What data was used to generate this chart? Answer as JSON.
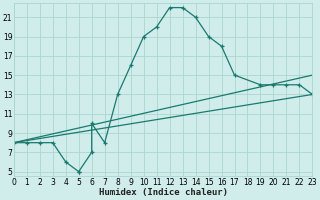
{
  "xlabel": "Humidex (Indice chaleur)",
  "bg_color": "#d0eceb",
  "grid_color": "#aad6d2",
  "line_color": "#1a7a6e",
  "xlim": [
    0,
    23
  ],
  "ylim": [
    4.5,
    22.5
  ],
  "xtick_labels": [
    "0",
    "1",
    "2",
    "3",
    "4",
    "5",
    "6",
    "7",
    "8",
    "9",
    "10",
    "11",
    "12",
    "13",
    "14",
    "15",
    "16",
    "17",
    "18",
    "19",
    "20",
    "21",
    "22",
    "23"
  ],
  "xticks": [
    0,
    1,
    2,
    3,
    4,
    5,
    6,
    7,
    8,
    9,
    10,
    11,
    12,
    13,
    14,
    15,
    16,
    17,
    18,
    19,
    20,
    21,
    22,
    23
  ],
  "yticks": [
    5,
    7,
    9,
    11,
    13,
    15,
    17,
    19,
    21
  ],
  "curve_x": [
    0,
    1,
    2,
    3,
    4,
    5,
    5,
    6,
    6,
    7,
    8,
    9,
    10,
    11,
    12,
    13,
    14,
    15,
    16,
    17,
    19,
    20,
    21,
    22,
    23
  ],
  "curve_y": [
    8,
    8,
    8,
    8,
    6,
    5,
    5,
    7,
    10,
    8,
    13,
    16,
    19,
    20,
    22,
    22,
    21,
    19,
    18,
    15,
    14,
    14,
    14,
    14,
    13
  ],
  "line1_x": [
    0,
    23
  ],
  "line1_y": [
    8,
    15
  ],
  "line2_x": [
    0,
    23
  ],
  "line2_y": [
    8,
    13
  ]
}
